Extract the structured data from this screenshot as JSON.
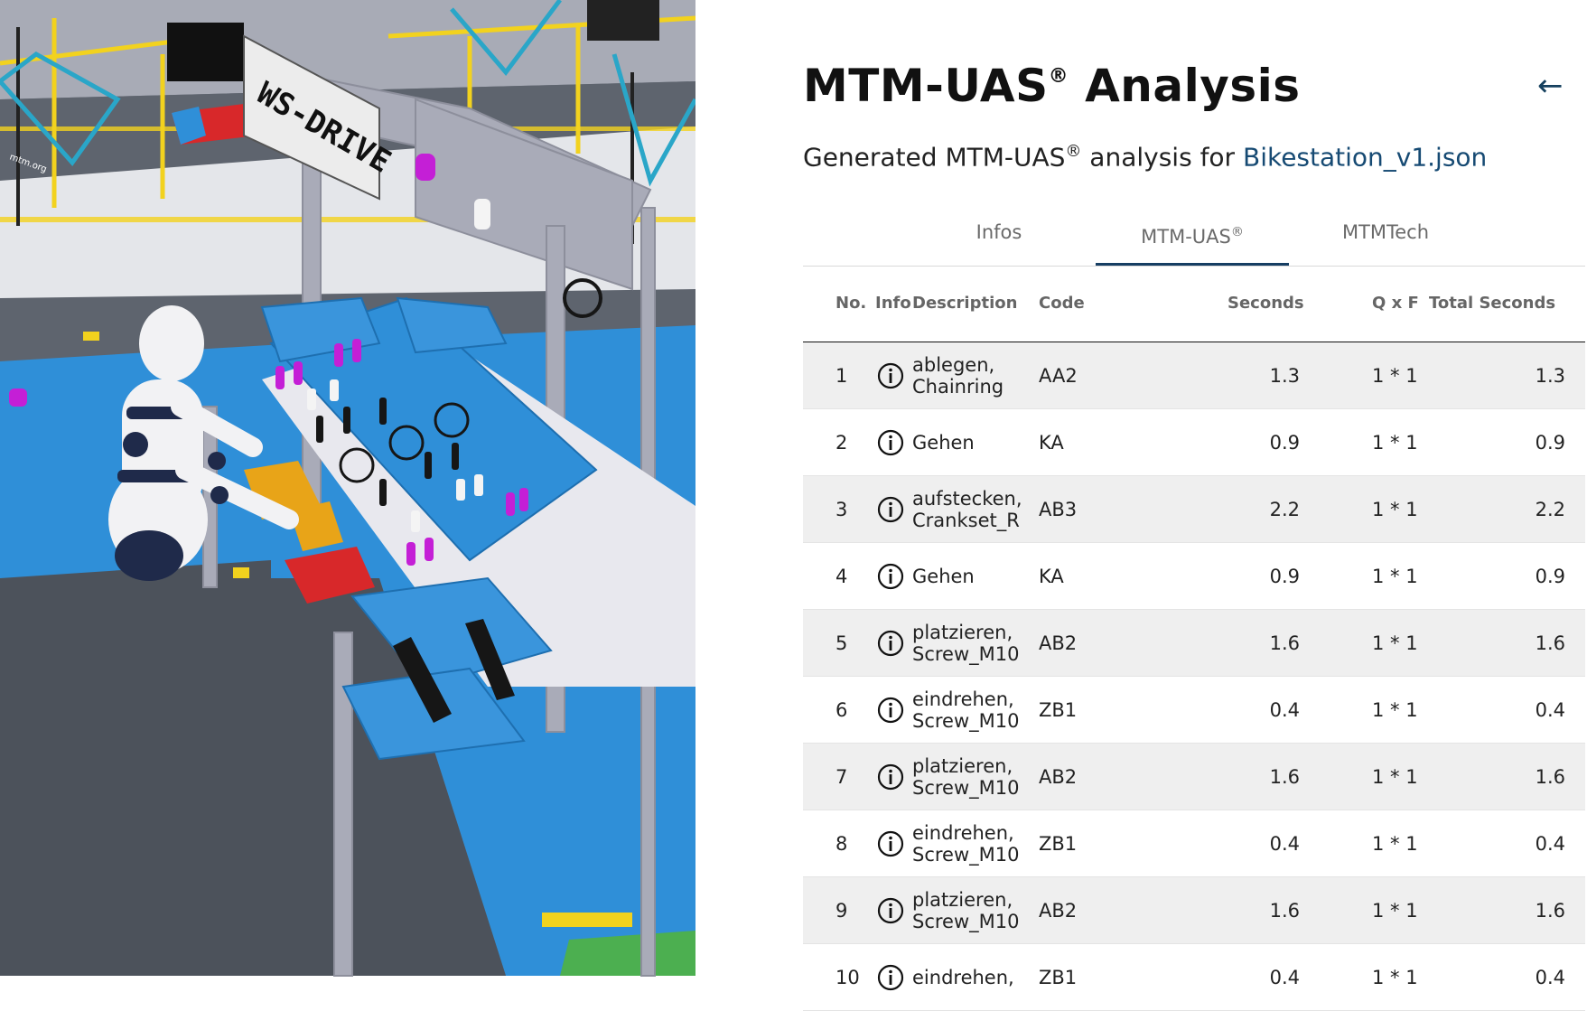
{
  "panel": {
    "title": "MTM-UAS",
    "title_mark": "®",
    "title_rest": "Analysis",
    "subtitle_prefix": "Generated MTM-UAS",
    "subtitle_mark": "®",
    "subtitle_mid": "analysis for",
    "file_link": "Bikestation_v1.json",
    "back_icon": "←"
  },
  "tabs": [
    {
      "label": "Infos",
      "mark": "",
      "active": false
    },
    {
      "label": "MTM-UAS",
      "mark": "®",
      "active": true
    },
    {
      "label": "MTMTech",
      "mark": "",
      "active": false
    }
  ],
  "table": {
    "headers": {
      "no": "No.",
      "info": "Info",
      "description": "Description",
      "code": "Code",
      "seconds": "Seconds",
      "qf": "Q x F",
      "total": "Total Seconds"
    },
    "rows": [
      {
        "no": "1",
        "description": "ablegen,\nChainring",
        "code": "AA2",
        "seconds": "1.3",
        "qf": "1 * 1",
        "total": "1.3"
      },
      {
        "no": "2",
        "description": "Gehen",
        "code": "KA",
        "seconds": "0.9",
        "qf": "1 * 1",
        "total": "0.9"
      },
      {
        "no": "3",
        "description": "aufstecken,\nCrankset_R",
        "code": "AB3",
        "seconds": "2.2",
        "qf": "1 * 1",
        "total": "2.2"
      },
      {
        "no": "4",
        "description": "Gehen",
        "code": "KA",
        "seconds": "0.9",
        "qf": "1 * 1",
        "total": "0.9"
      },
      {
        "no": "5",
        "description": "platzieren,\nScrew_M10",
        "code": "AB2",
        "seconds": "1.6",
        "qf": "1 * 1",
        "total": "1.6"
      },
      {
        "no": "6",
        "description": "eindrehen,\nScrew_M10",
        "code": "ZB1",
        "seconds": "0.4",
        "qf": "1 * 1",
        "total": "0.4"
      },
      {
        "no": "7",
        "description": "platzieren,\nScrew_M10",
        "code": "AB2",
        "seconds": "1.6",
        "qf": "1 * 1",
        "total": "1.6"
      },
      {
        "no": "8",
        "description": "eindrehen,\nScrew_M10",
        "code": "ZB1",
        "seconds": "0.4",
        "qf": "1 * 1",
        "total": "0.4"
      },
      {
        "no": "9",
        "description": "platzieren,\nScrew_M10",
        "code": "AB2",
        "seconds": "1.6",
        "qf": "1 * 1",
        "total": "1.6"
      },
      {
        "no": "10",
        "description": "eindrehen,",
        "code": "ZB1",
        "seconds": "0.4",
        "qf": "1 * 1",
        "total": "0.4"
      }
    ]
  },
  "scene": {
    "sign_text": "WS-DRIVE",
    "floor_label": "mtm.org",
    "colors": {
      "floor_blue": "#2f8fd8",
      "rail_yellow": "#f2d21e",
      "rack_grey": "#a9abb8",
      "bin_magenta": "#c41fd6",
      "bin_orange": "#e8a418",
      "bin_red": "#d8282a"
    }
  },
  "colors": {
    "accent": "#173e63",
    "link": "#164a73",
    "row_alt": "#efefef"
  }
}
